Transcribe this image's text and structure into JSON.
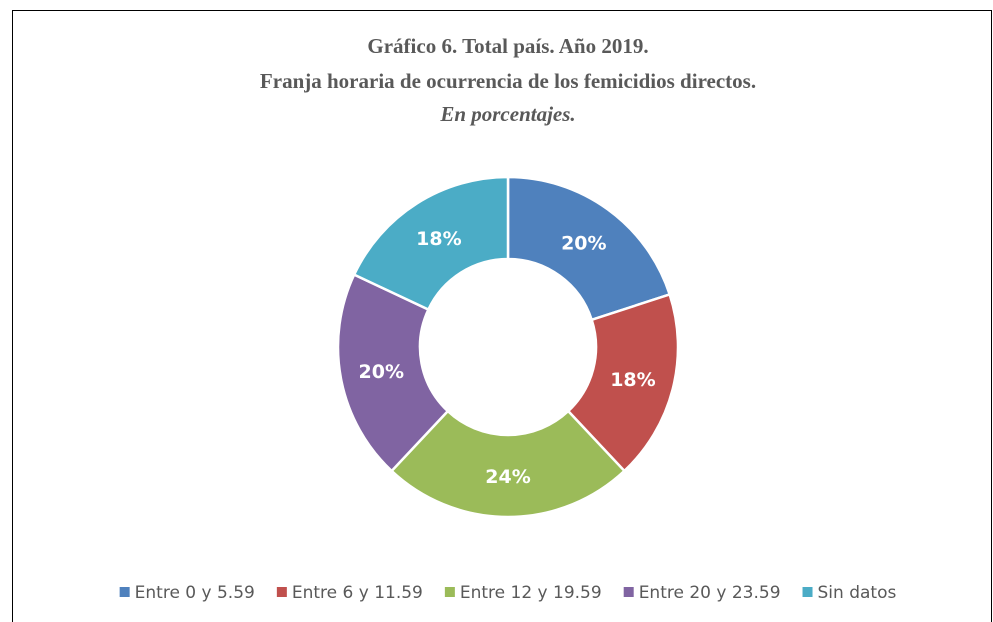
{
  "chart_data": {
    "type": "donut",
    "title": "Gráfico 6. Total país. Año 2019.",
    "subtitle": "Franja horaria de ocurrencia de los femicidios directos.",
    "caption": "En porcentajes.",
    "categories": [
      "Entre 0 y 5.59",
      "Entre 6 y 11.59",
      "Entre 12 y 19.59",
      "Entre 20 y 23.59",
      "Sin datos"
    ],
    "values": [
      20,
      18,
      24,
      20,
      18
    ],
    "value_labels": [
      "20%",
      "18%",
      "24%",
      "20%",
      "18%"
    ],
    "colors": [
      "#4f81bd",
      "#c0504d",
      "#9bbb59",
      "#8064a2",
      "#4bacc6"
    ],
    "legend": "bottom"
  }
}
